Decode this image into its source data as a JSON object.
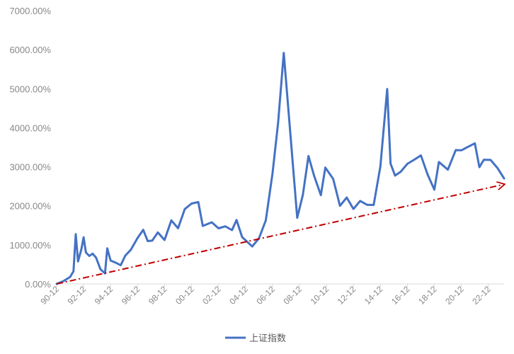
{
  "chart_data": {
    "type": "line",
    "title": "",
    "xlabel": "",
    "ylabel": "",
    "ylim": [
      0,
      7000
    ],
    "y_unit": "%",
    "grid": false,
    "legend_position": "bottom",
    "y_ticks": [
      "0.00%",
      "1000.00%",
      "2000.00%",
      "3000.00%",
      "4000.00%",
      "5000.00%",
      "6000.00%",
      "7000.00%"
    ],
    "x_ticks": [
      "90-12",
      "92-12",
      "94-12",
      "96-12",
      "98-12",
      "00-12",
      "02-12",
      "04-12",
      "06-12",
      "08-12",
      "10-12",
      "12-12",
      "14-12",
      "16-12",
      "18-12",
      "20-12",
      "22-12"
    ],
    "x_range": [
      "1990-12",
      "2024-02"
    ],
    "series": [
      {
        "name": "上证指数",
        "color": "#4472C4",
        "x": [
          "1990-12",
          "1991-06",
          "1991-12",
          "1992-03",
          "1992-05",
          "1992-07",
          "1992-10",
          "1992-12",
          "1993-02",
          "1993-05",
          "1993-08",
          "1993-11",
          "1994-03",
          "1994-07",
          "1994-09",
          "1994-12",
          "1995-05",
          "1995-09",
          "1996-01",
          "1996-06",
          "1996-12",
          "1997-05",
          "1997-09",
          "1998-01",
          "1998-06",
          "1998-12",
          "1999-06",
          "1999-12",
          "2000-06",
          "2000-12",
          "2001-06",
          "2001-10",
          "2002-06",
          "2002-12",
          "2003-06",
          "2003-12",
          "2004-04",
          "2004-09",
          "2005-06",
          "2005-12",
          "2006-06",
          "2006-12",
          "2007-05",
          "2007-10",
          "2008-04",
          "2008-10",
          "2009-03",
          "2009-08",
          "2010-01",
          "2010-07",
          "2010-11",
          "2011-06",
          "2011-12",
          "2012-06",
          "2012-12",
          "2013-06",
          "2013-12",
          "2014-06",
          "2014-12",
          "2015-03",
          "2015-06",
          "2015-09",
          "2016-01",
          "2016-06",
          "2016-12",
          "2017-06",
          "2017-12",
          "2018-06",
          "2018-12",
          "2019-04",
          "2019-12",
          "2020-07",
          "2020-12",
          "2021-06",
          "2021-12",
          "2022-04",
          "2022-08",
          "2023-02",
          "2023-08",
          "2024-02"
        ],
        "values": [
          0,
          80,
          200,
          350,
          1300,
          600,
          900,
          1200,
          800,
          700,
          750,
          650,
          350,
          250,
          900,
          600,
          550,
          500,
          750,
          900,
          1200,
          1400,
          1100,
          1100,
          1300,
          1100,
          1600,
          1400,
          1900,
          2050,
          2100,
          1500,
          1600,
          1450,
          1500,
          1400,
          1650,
          1200,
          950,
          1150,
          1600,
          2800,
          4100,
          5900,
          3800,
          1700,
          2300,
          3300,
          2800,
          2300,
          3000,
          2700,
          2000,
          2200,
          1900,
          2100,
          2000,
          2000,
          3000,
          4000,
          5000,
          3100,
          2800,
          2900,
          3100,
          3200,
          3300,
          2800,
          2400,
          3100,
          2900,
          3400,
          3400,
          3500,
          3600,
          3000,
          3200,
          3200,
          3000,
          2700
        ]
      },
      {
        "name": "",
        "type": "trend_arrow",
        "style": "dash-dot",
        "color": "#C00000",
        "x": [
          "1990-12",
          "2024-02"
        ],
        "values": [
          0,
          2550
        ]
      }
    ]
  }
}
